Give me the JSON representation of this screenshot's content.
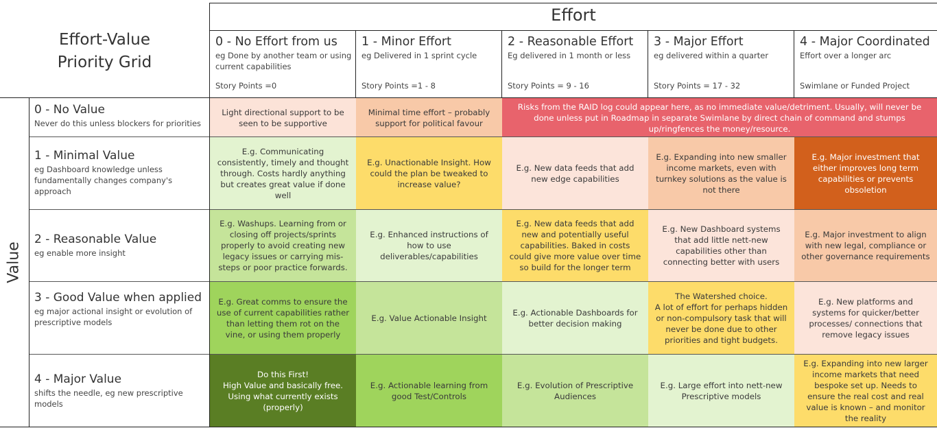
{
  "title": "Effort-Value\nPriority Grid",
  "effort_label": "Effort",
  "value_label": "Value",
  "columns": [
    {
      "title": "0 - No Effort from us",
      "desc": "eg Done by another team or using current capabilities",
      "points": "Story Points =0"
    },
    {
      "title": "1 - Minor Effort",
      "desc": "eg Delivered in 1 sprint cycle",
      "points": "Story Points =1 - 8"
    },
    {
      "title": "2 - Reasonable Effort",
      "desc": "Eg delivered in 1 month or less",
      "points": "Story Points = 9 - 16"
    },
    {
      "title": "3 - Major Effort",
      "desc": "eg delivered within a quarter",
      "points": "Story Points = 17 - 32"
    },
    {
      "title": "4 - Major Coordinated",
      "desc": "Effort over a longer arc",
      "points": "Swimlane or Funded Project"
    }
  ],
  "rows": [
    {
      "title": "0 - No Value",
      "desc": "Never do this unless blockers for priorities"
    },
    {
      "title": "1 - Minimal Value",
      "desc": "eg Dashboard knowledge unless fundamentally changes company's approach"
    },
    {
      "title": "2 - Reasonable Value",
      "desc": "eg enable more insight"
    },
    {
      "title": "3 - Good Value when applied",
      "desc": "eg major actional insight or evolution of prescriptive models"
    },
    {
      "title": "4 - Major Value",
      "desc": "shifts the needle, eg new prescriptive models"
    }
  ],
  "cells": {
    "r0c0": "Light directional support to be seen to be supportive",
    "r0c1": "Minimal time effort – probably support for political favour",
    "r0c234": "Risks from the RAID log could appear here, as no immediate value/detriment. Usually, will never be done unless put in Roadmap in separate Swimlane by direct chain of command and stumps up/ringfences the money/resource.",
    "r1c0": "E.g. Communicating consistently, timely and thought through. Costs hardly anything but creates great value if done well",
    "r1c1": "E.g. Unactionable Insight. How could the plan be tweaked to increase value?",
    "r1c2": "E.g. New data feeds that add new edge capabilities",
    "r1c3": "E.g. Expanding into new smaller income markets, even with turnkey solutions as the value is not there",
    "r1c4": "E.g. Major investment that either improves long term capabilities or prevents obsoletion",
    "r2c0": "E.g. Washups. Learning from or closing off projects/sprints properly to avoid creating new legacy issues or carrying mis-steps or poor practice forwards.",
    "r2c1": "E.g. Enhanced instructions of how to use deliverables/capabilities",
    "r2c2": "E.g. New data feeds that add new and potentially useful capabilities. Baked in costs could give more value over time so build for the longer term",
    "r2c3": "E.g. New Dashboard systems that add little nett-new capabilities other than connecting better with users",
    "r2c4": "E.g. Major investment to align with new legal, compliance or other governance requirements",
    "r3c0": "E.g. Great comms to ensure the use of current capabilities rather than letting them rot on the vine, or using them properly",
    "r3c1": "E.g. Value Actionable Insight",
    "r3c2": "E.g. Actionable Dashboards for better decision making",
    "r3c3": "The Watershed choice.\nA lot of effort for perhaps hidden or non-compulsory task that will never be done due to other priorities and tight budgets.",
    "r3c4": "E.g. New platforms and systems for quicker/better processes/ connections that remove legacy issues",
    "r4c0": "Do this First!\nHigh Value and basically free.\nUsing what currently exists\n(properly)",
    "r4c1": "E.g. Actionable learning from good Test/Controls",
    "r4c2": "E.g. Evolution of Prescriptive Audiences",
    "r4c3": "E.g. Large effort into nett-new Prescriptive models",
    "r4c4": "E.g. Expanding into new larger income markets that need bespoke set up. Needs to ensure the real cost and real value is known – and monitor the reality"
  },
  "colors": {
    "r0c0": "#fce3d8",
    "r0c1": "#f8c9a8",
    "r0c234": "#e8636c",
    "r1c0": "#e3f3d0",
    "r1c1": "#fddc6a",
    "r1c2": "#fce4da",
    "r1c3": "#f8c9a8",
    "r1c4": "#d2601c",
    "r2c0": "#c5e49a",
    "r2c1": "#e3f3d0",
    "r2c2": "#fddc6a",
    "r2c3": "#fce4da",
    "r2c4": "#f8c9a8",
    "r3c0": "#9fd45c",
    "r3c1": "#c5e49a",
    "r3c2": "#e3f3d0",
    "r3c3": "#fddc6a",
    "r3c4": "#fce4da",
    "r4c0": "#5a7e24",
    "r4c1": "#9fd45c",
    "r4c2": "#c5e49a",
    "r4c3": "#e3f3d0",
    "r4c4": "#fddc6a"
  }
}
